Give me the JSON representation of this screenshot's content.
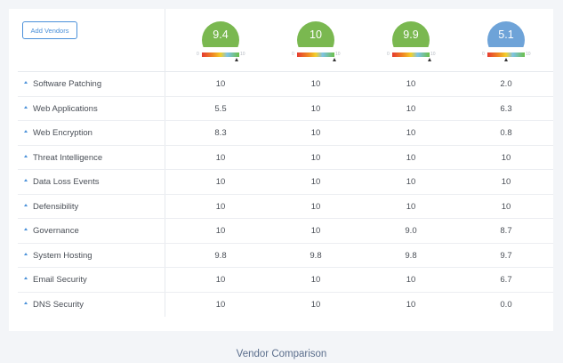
{
  "toolbar": {
    "add_vendors_label": "Add Vendors"
  },
  "vendors": [
    {
      "score": "9.4",
      "color": "#7ab850",
      "gauge_level": 0.94,
      "gauge_min": "0",
      "gauge_max": "10"
    },
    {
      "score": "10",
      "color": "#7ab850",
      "gauge_level": 1.0,
      "gauge_min": "0",
      "gauge_max": "10"
    },
    {
      "score": "9.9",
      "color": "#7ab850",
      "gauge_level": 0.99,
      "gauge_min": "0",
      "gauge_max": "10"
    },
    {
      "score": "5.1",
      "color": "#6ea3d8",
      "gauge_level": 0.51,
      "gauge_min": "0",
      "gauge_max": "10"
    }
  ],
  "rows": [
    {
      "label": "Software Patching",
      "values": [
        "10",
        "10",
        "10",
        "2.0"
      ]
    },
    {
      "label": "Web Applications",
      "values": [
        "5.5",
        "10",
        "10",
        "6.3"
      ]
    },
    {
      "label": "Web Encryption",
      "values": [
        "8.3",
        "10",
        "10",
        "0.8"
      ]
    },
    {
      "label": "Threat Intelligence",
      "values": [
        "10",
        "10",
        "10",
        "10"
      ]
    },
    {
      "label": "Data Loss Events",
      "values": [
        "10",
        "10",
        "10",
        "10"
      ]
    },
    {
      "label": "Defensibility",
      "values": [
        "10",
        "10",
        "10",
        "10"
      ]
    },
    {
      "label": "Governance",
      "values": [
        "10",
        "10",
        "9.0",
        "8.7"
      ]
    },
    {
      "label": "System Hosting",
      "values": [
        "9.8",
        "9.8",
        "9.8",
        "9.7"
      ]
    },
    {
      "label": "Email Security",
      "values": [
        "10",
        "10",
        "10",
        "6.7"
      ]
    },
    {
      "label": "DNS Security",
      "values": [
        "10",
        "10",
        "10",
        "0.0"
      ]
    }
  ],
  "caption": "Vendor Comparison",
  "colors": {
    "accent": "#4a90d9",
    "good": "#7ab850",
    "medium": "#6ea3d8"
  }
}
